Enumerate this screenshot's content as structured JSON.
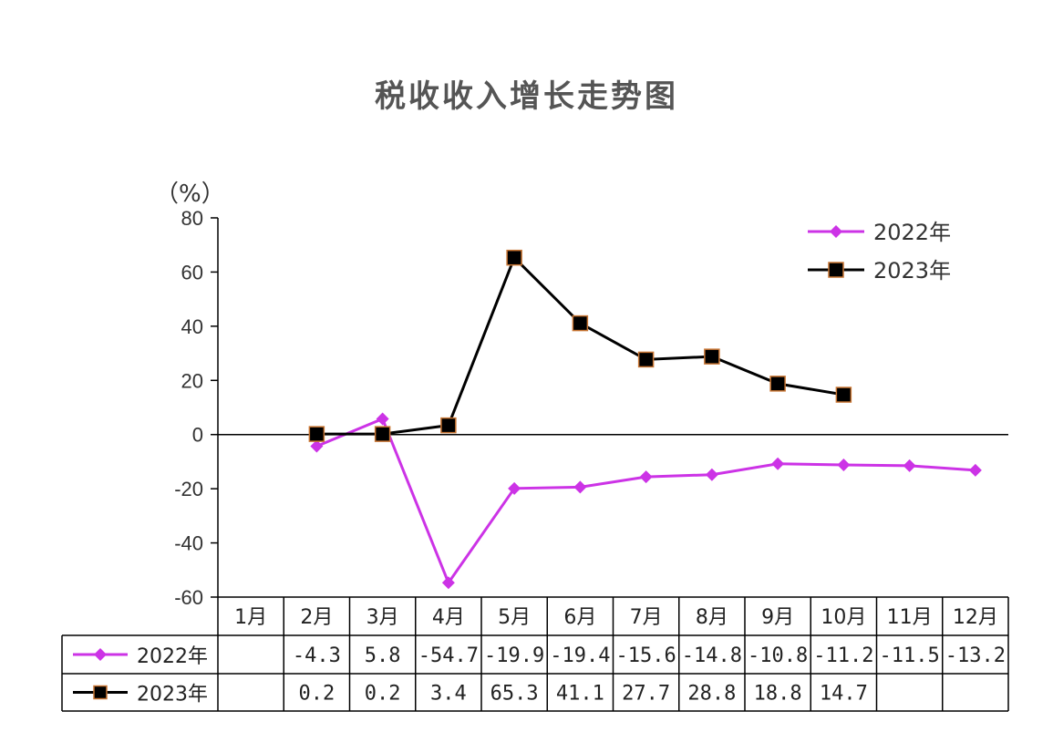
{
  "chart_data": {
    "type": "line",
    "title": "税收收入增长走势图",
    "unit_label": "（%）",
    "categories": [
      "1月",
      "2月",
      "3月",
      "4月",
      "5月",
      "6月",
      "7月",
      "8月",
      "9月",
      "10月",
      "11月",
      "12月"
    ],
    "ylim": [
      -60,
      80
    ],
    "yticks": [
      80,
      60,
      40,
      20,
      0,
      -20,
      -40,
      -60
    ],
    "legend_position": "top-right",
    "series": [
      {
        "name": "2022年",
        "color": "#cc33e6",
        "marker": "diamond",
        "values": [
          null,
          -4.3,
          5.8,
          -54.7,
          -19.9,
          -19.4,
          -15.6,
          -14.8,
          -10.8,
          -11.2,
          -11.5,
          -13.2
        ],
        "table_labels": [
          "",
          "-4.3",
          "5.8",
          "-54.7",
          "-19.9",
          "-19.4",
          "-15.6",
          "-14.8",
          "-10.8",
          "-11.2",
          "-11.5",
          "-13.2"
        ]
      },
      {
        "name": "2023年",
        "color": "#000000",
        "marker": "square",
        "marker_edge": "#c87533",
        "values": [
          null,
          0.2,
          0.2,
          3.4,
          65.3,
          41.1,
          27.7,
          28.8,
          18.8,
          14.7,
          null,
          null
        ],
        "table_labels": [
          "",
          "0.2",
          "0.2",
          "3.4",
          "65.3",
          "41.1",
          "27.7",
          "28.8",
          "18.8",
          "14.7",
          "",
          ""
        ]
      }
    ]
  }
}
